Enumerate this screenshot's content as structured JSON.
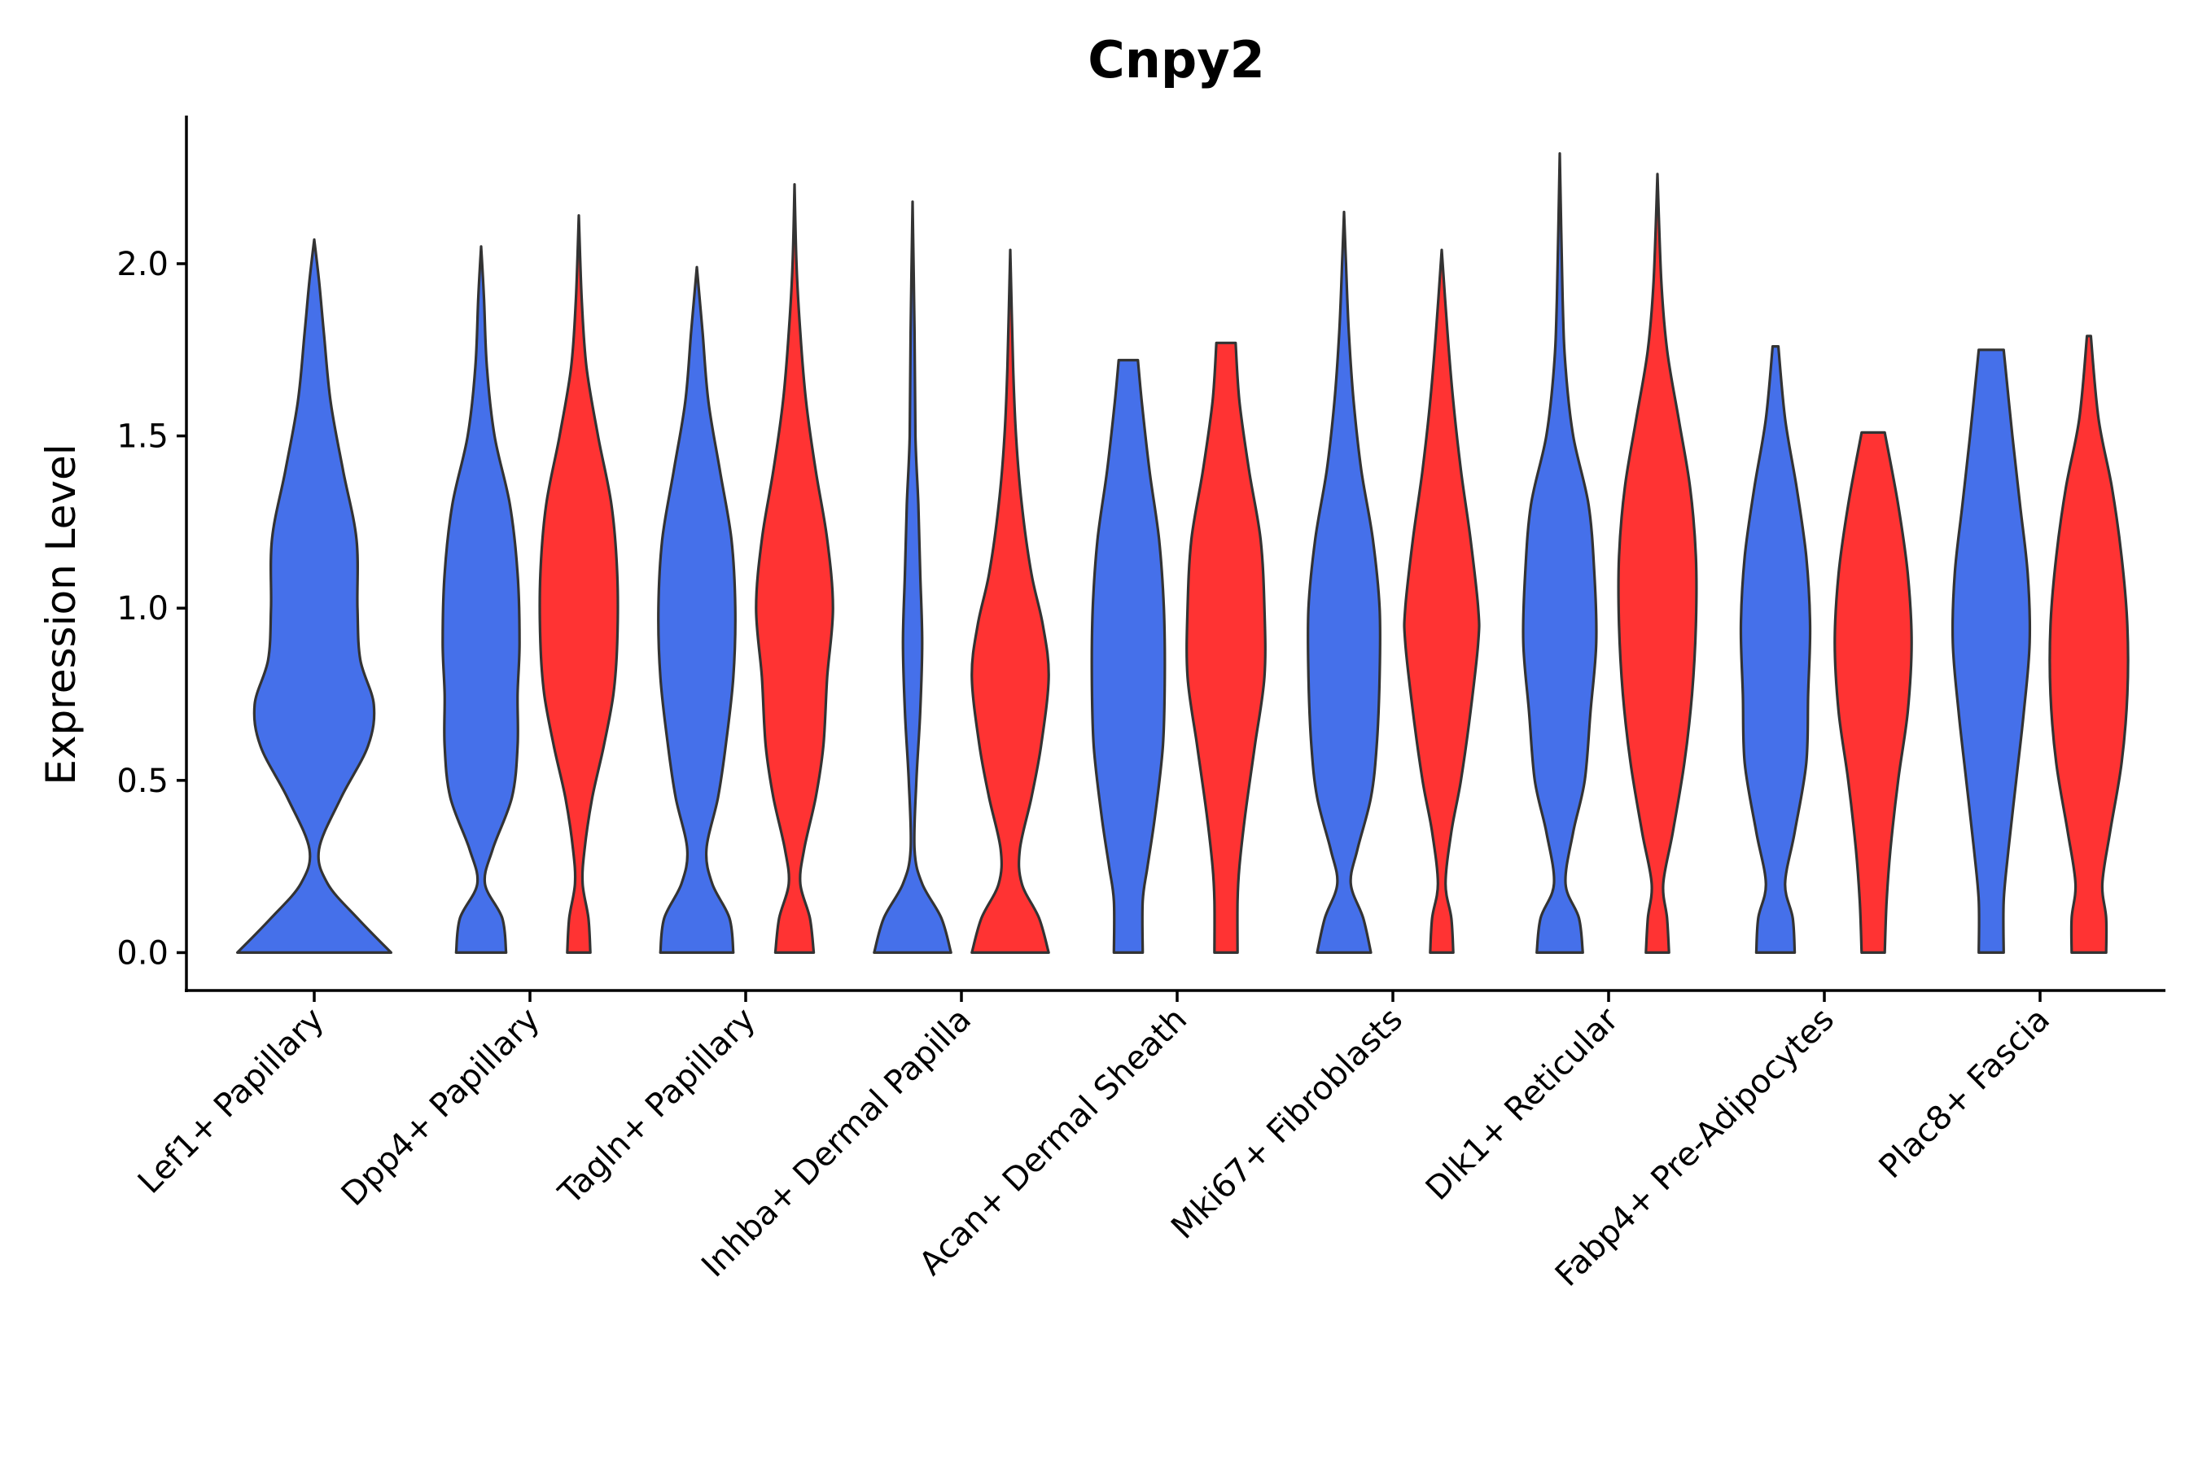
{
  "chart_data": {
    "type": "violin",
    "title": "Cnpy2",
    "xlabel": "",
    "ylabel": "Expression Level",
    "ylim": [
      -0.11,
      2.43
    ],
    "yticks": [
      "0.0",
      "0.5",
      "1.0",
      "1.5",
      "2.0"
    ],
    "ytick_values": [
      0,
      0.5,
      1.0,
      1.5,
      2.0
    ],
    "categories": [
      "Lef1+ Papillary",
      "Dpp4+ Papillary",
      "Tagln+ Papillary",
      "Inhba+ Dermal Papilla",
      "Acan+ Dermal Sheath",
      "Mki67+ Fibroblasts",
      "Dlk1+ Reticular",
      "Fabp4+ Pre-Adipocytes",
      "Plac8+ Fascia"
    ],
    "series_colors": {
      "blue": "#4570EA",
      "red": "#FF3333"
    },
    "violins": [
      {
        "category": 0,
        "group": "blue",
        "max": 2.07,
        "profile": [
          [
            0,
            0.8
          ],
          [
            0.1,
            0.45
          ],
          [
            0.2,
            0.14
          ],
          [
            0.3,
            0.05
          ],
          [
            0.45,
            0.28
          ],
          [
            0.6,
            0.56
          ],
          [
            0.72,
            0.62
          ],
          [
            0.85,
            0.48
          ],
          [
            1.0,
            0.45
          ],
          [
            1.2,
            0.44
          ],
          [
            1.4,
            0.3
          ],
          [
            1.6,
            0.17
          ],
          [
            1.8,
            0.1
          ],
          [
            1.95,
            0.05
          ],
          [
            2.07,
            0
          ]
        ]
      },
      {
        "category": 1,
        "group": "blue",
        "max": 2.05,
        "profile": [
          [
            0,
            0.26
          ],
          [
            0.1,
            0.22
          ],
          [
            0.2,
            0.04
          ],
          [
            0.3,
            0.12
          ],
          [
            0.45,
            0.32
          ],
          [
            0.6,
            0.38
          ],
          [
            0.75,
            0.38
          ],
          [
            0.9,
            0.4
          ],
          [
            1.1,
            0.38
          ],
          [
            1.3,
            0.3
          ],
          [
            1.5,
            0.14
          ],
          [
            1.7,
            0.06
          ],
          [
            1.9,
            0.03
          ],
          [
            2.05,
            0
          ]
        ]
      },
      {
        "category": 1,
        "group": "red",
        "max": 2.14,
        "profile": [
          [
            0,
            0.12
          ],
          [
            0.1,
            0.1
          ],
          [
            0.2,
            0.04
          ],
          [
            0.3,
            0.06
          ],
          [
            0.45,
            0.14
          ],
          [
            0.6,
            0.26
          ],
          [
            0.75,
            0.36
          ],
          [
            0.9,
            0.4
          ],
          [
            1.1,
            0.4
          ],
          [
            1.3,
            0.34
          ],
          [
            1.5,
            0.2
          ],
          [
            1.7,
            0.08
          ],
          [
            1.9,
            0.03
          ],
          [
            2.14,
            0
          ]
        ]
      },
      {
        "category": 2,
        "group": "blue",
        "max": 1.99,
        "profile": [
          [
            0,
            0.38
          ],
          [
            0.1,
            0.34
          ],
          [
            0.2,
            0.16
          ],
          [
            0.3,
            0.1
          ],
          [
            0.45,
            0.22
          ],
          [
            0.6,
            0.3
          ],
          [
            0.8,
            0.38
          ],
          [
            1.0,
            0.4
          ],
          [
            1.2,
            0.36
          ],
          [
            1.4,
            0.24
          ],
          [
            1.6,
            0.12
          ],
          [
            1.8,
            0.06
          ],
          [
            1.99,
            0
          ]
        ]
      },
      {
        "category": 2,
        "group": "red",
        "max": 2.23,
        "profile": [
          [
            0,
            0.2
          ],
          [
            0.1,
            0.16
          ],
          [
            0.2,
            0.06
          ],
          [
            0.3,
            0.1
          ],
          [
            0.45,
            0.22
          ],
          [
            0.6,
            0.3
          ],
          [
            0.8,
            0.34
          ],
          [
            1.0,
            0.4
          ],
          [
            1.2,
            0.34
          ],
          [
            1.4,
            0.22
          ],
          [
            1.6,
            0.12
          ],
          [
            1.8,
            0.06
          ],
          [
            2.0,
            0.02
          ],
          [
            2.23,
            0
          ]
        ]
      },
      {
        "category": 3,
        "group": "blue",
        "max": 2.18,
        "profile": [
          [
            0,
            0.4
          ],
          [
            0.1,
            0.3
          ],
          [
            0.2,
            0.1
          ],
          [
            0.3,
            0.02
          ],
          [
            0.5,
            0.04
          ],
          [
            0.7,
            0.08
          ],
          [
            0.9,
            0.1
          ],
          [
            1.1,
            0.08
          ],
          [
            1.3,
            0.06
          ],
          [
            1.5,
            0.03
          ],
          [
            1.8,
            0.02
          ],
          [
            2.18,
            0
          ]
        ]
      },
      {
        "category": 3,
        "group": "red",
        "max": 2.04,
        "profile": [
          [
            0,
            0.4
          ],
          [
            0.1,
            0.3
          ],
          [
            0.2,
            0.12
          ],
          [
            0.3,
            0.1
          ],
          [
            0.45,
            0.22
          ],
          [
            0.6,
            0.32
          ],
          [
            0.8,
            0.4
          ],
          [
            0.95,
            0.34
          ],
          [
            1.1,
            0.22
          ],
          [
            1.3,
            0.12
          ],
          [
            1.5,
            0.06
          ],
          [
            1.7,
            0.03
          ],
          [
            2.04,
            0
          ]
        ]
      },
      {
        "category": 4,
        "group": "blue",
        "max": 1.72,
        "profile": [
          [
            0,
            0.15
          ],
          [
            0.15,
            0.15
          ],
          [
            0.25,
            0.2
          ],
          [
            0.4,
            0.28
          ],
          [
            0.6,
            0.36
          ],
          [
            0.8,
            0.38
          ],
          [
            1.0,
            0.37
          ],
          [
            1.2,
            0.32
          ],
          [
            1.4,
            0.22
          ],
          [
            1.6,
            0.14
          ],
          [
            1.72,
            0.1
          ]
        ]
      },
      {
        "category": 4,
        "group": "red",
        "max": 1.77,
        "profile": [
          [
            0,
            0.12
          ],
          [
            0.15,
            0.12
          ],
          [
            0.25,
            0.14
          ],
          [
            0.4,
            0.2
          ],
          [
            0.6,
            0.3
          ],
          [
            0.8,
            0.4
          ],
          [
            1.0,
            0.4
          ],
          [
            1.2,
            0.36
          ],
          [
            1.4,
            0.24
          ],
          [
            1.6,
            0.14
          ],
          [
            1.77,
            0.1
          ]
        ]
      },
      {
        "category": 5,
        "group": "blue",
        "max": 2.15,
        "profile": [
          [
            0,
            0.28
          ],
          [
            0.1,
            0.2
          ],
          [
            0.2,
            0.07
          ],
          [
            0.3,
            0.14
          ],
          [
            0.45,
            0.28
          ],
          [
            0.6,
            0.34
          ],
          [
            0.8,
            0.37
          ],
          [
            1.0,
            0.37
          ],
          [
            1.2,
            0.3
          ],
          [
            1.4,
            0.18
          ],
          [
            1.6,
            0.1
          ],
          [
            1.8,
            0.05
          ],
          [
            2.0,
            0.02
          ],
          [
            2.15,
            0
          ]
        ]
      },
      {
        "category": 5,
        "group": "red",
        "max": 2.04,
        "profile": [
          [
            0,
            0.12
          ],
          [
            0.1,
            0.1
          ],
          [
            0.2,
            0.04
          ],
          [
            0.35,
            0.1
          ],
          [
            0.5,
            0.2
          ],
          [
            0.7,
            0.3
          ],
          [
            0.9,
            0.38
          ],
          [
            1.0,
            0.38
          ],
          [
            1.2,
            0.3
          ],
          [
            1.4,
            0.2
          ],
          [
            1.6,
            0.12
          ],
          [
            1.8,
            0.06
          ],
          [
            2.04,
            0
          ]
        ]
      },
      {
        "category": 6,
        "group": "blue",
        "max": 2.32,
        "profile": [
          [
            0,
            0.24
          ],
          [
            0.1,
            0.2
          ],
          [
            0.2,
            0.06
          ],
          [
            0.35,
            0.14
          ],
          [
            0.5,
            0.26
          ],
          [
            0.7,
            0.32
          ],
          [
            0.9,
            0.38
          ],
          [
            1.1,
            0.36
          ],
          [
            1.3,
            0.3
          ],
          [
            1.5,
            0.14
          ],
          [
            1.7,
            0.06
          ],
          [
            1.9,
            0.03
          ],
          [
            2.32,
            0
          ]
        ]
      },
      {
        "category": 6,
        "group": "red",
        "max": 2.26,
        "profile": [
          [
            0,
            0.12
          ],
          [
            0.1,
            0.1
          ],
          [
            0.2,
            0.06
          ],
          [
            0.35,
            0.16
          ],
          [
            0.55,
            0.28
          ],
          [
            0.75,
            0.36
          ],
          [
            0.95,
            0.4
          ],
          [
            1.15,
            0.4
          ],
          [
            1.35,
            0.34
          ],
          [
            1.55,
            0.22
          ],
          [
            1.75,
            0.1
          ],
          [
            1.95,
            0.04
          ],
          [
            2.26,
            0
          ]
        ]
      },
      {
        "category": 7,
        "group": "blue",
        "max": 1.76,
        "profile": [
          [
            0,
            0.2
          ],
          [
            0.1,
            0.18
          ],
          [
            0.2,
            0.1
          ],
          [
            0.35,
            0.2
          ],
          [
            0.55,
            0.32
          ],
          [
            0.75,
            0.34
          ],
          [
            0.95,
            0.36
          ],
          [
            1.15,
            0.32
          ],
          [
            1.35,
            0.22
          ],
          [
            1.55,
            0.1
          ],
          [
            1.76,
            0.03
          ]
        ]
      },
      {
        "category": 7,
        "group": "red",
        "max": 1.51,
        "profile": [
          [
            0,
            0.12
          ],
          [
            0.15,
            0.14
          ],
          [
            0.3,
            0.18
          ],
          [
            0.5,
            0.26
          ],
          [
            0.7,
            0.36
          ],
          [
            0.9,
            0.4
          ],
          [
            1.1,
            0.36
          ],
          [
            1.3,
            0.26
          ],
          [
            1.51,
            0.12
          ]
        ]
      },
      {
        "category": 8,
        "group": "blue",
        "max": 1.75,
        "profile": [
          [
            0,
            0.13
          ],
          [
            0.15,
            0.13
          ],
          [
            0.3,
            0.18
          ],
          [
            0.5,
            0.26
          ],
          [
            0.7,
            0.34
          ],
          [
            0.9,
            0.4
          ],
          [
            1.1,
            0.38
          ],
          [
            1.3,
            0.3
          ],
          [
            1.5,
            0.22
          ],
          [
            1.75,
            0.13
          ]
        ]
      },
      {
        "category": 8,
        "group": "red",
        "max": 1.79,
        "profile": [
          [
            0,
            0.18
          ],
          [
            0.1,
            0.18
          ],
          [
            0.2,
            0.14
          ],
          [
            0.35,
            0.22
          ],
          [
            0.55,
            0.34
          ],
          [
            0.75,
            0.4
          ],
          [
            0.95,
            0.4
          ],
          [
            1.15,
            0.34
          ],
          [
            1.35,
            0.24
          ],
          [
            1.55,
            0.1
          ],
          [
            1.79,
            0.02
          ]
        ]
      }
    ]
  }
}
